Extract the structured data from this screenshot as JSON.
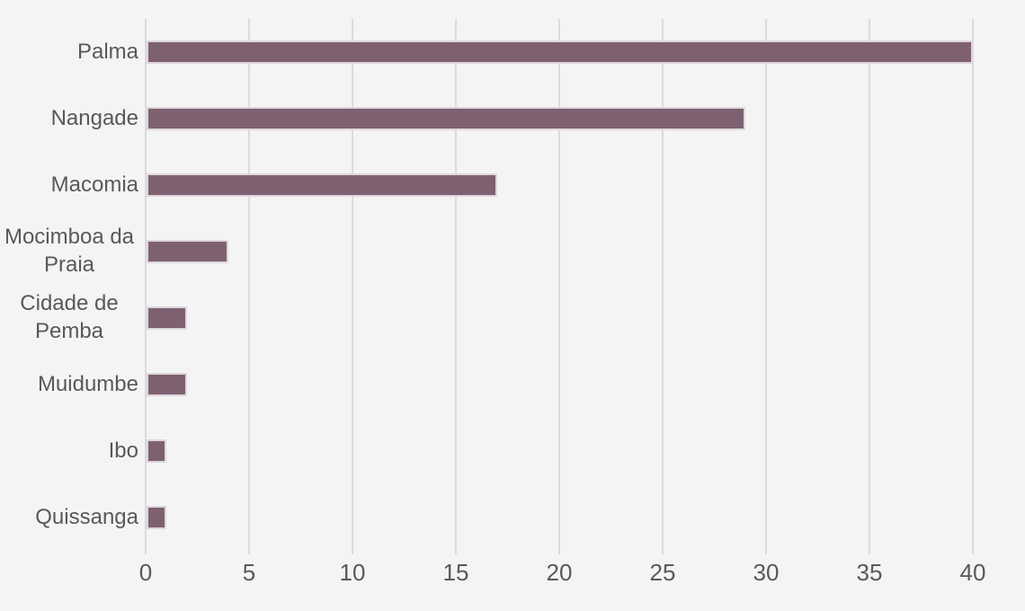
{
  "chart_data": {
    "type": "bar",
    "orientation": "horizontal",
    "title": "",
    "xlabel": "",
    "ylabel": "",
    "categories": [
      "Palma",
      "Nangade",
      "Macomia",
      "Mocimboa da Praia",
      "Cidade de Pemba",
      "Muidumbe",
      "Ibo",
      "Quissanga"
    ],
    "values": [
      40,
      29,
      17,
      4,
      2,
      2,
      1,
      1
    ],
    "xlim": [
      0,
      40
    ],
    "xticks": [
      0,
      5,
      10,
      15,
      20,
      25,
      30,
      35,
      40
    ],
    "grid": "vertical-gridlines",
    "legend": "none",
    "colors": {
      "bar": "#7E6170",
      "grid": "#DCDBDC",
      "text": "#595959",
      "background": "#F5F4F5"
    }
  }
}
